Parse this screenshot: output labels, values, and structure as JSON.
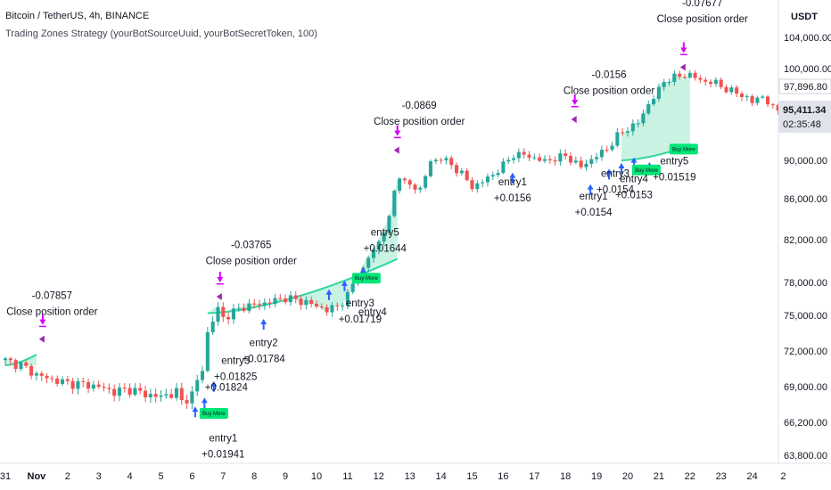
{
  "header": {
    "symbol_line": "Bitcoin / TetherUS, 4h, BINANCE",
    "strategy_line": "Trading Zones Strategy (yourBotSourceUuid, yourBotSecretToken, 100)",
    "currency": "USDT"
  },
  "price_badge": {
    "price": "95,411.34",
    "countdown": "02:35:48",
    "prior_price": "97,896.80"
  },
  "colors": {
    "up": "#26a69a",
    "down": "#ef5350",
    "zone_fill": "#bff0de",
    "zone_line": "#2fd6a0",
    "entry_arrow": "#2962ff",
    "close_arrow": "#d500f9",
    "tag_bg": "#00e676",
    "marker_blue": "#2962ff",
    "marker_purple": "#9c27b0"
  },
  "chart_data": {
    "type": "candlestick",
    "x_ticks": [
      {
        "label": "31",
        "day": 0
      },
      {
        "label": "Nov",
        "day": 1
      },
      {
        "label": "2",
        "day": 2
      },
      {
        "label": "3",
        "day": 3
      },
      {
        "label": "4",
        "day": 4
      },
      {
        "label": "5",
        "day": 5
      },
      {
        "label": "6",
        "day": 6
      },
      {
        "label": "7",
        "day": 7
      },
      {
        "label": "8",
        "day": 8
      },
      {
        "label": "9",
        "day": 9
      },
      {
        "label": "10",
        "day": 10
      },
      {
        "label": "11",
        "day": 11
      },
      {
        "label": "12",
        "day": 12
      },
      {
        "label": "13",
        "day": 13
      },
      {
        "label": "14",
        "day": 14
      },
      {
        "label": "15",
        "day": 15
      },
      {
        "label": "16",
        "day": 16
      },
      {
        "label": "17",
        "day": 17
      },
      {
        "label": "18",
        "day": 18
      },
      {
        "label": "19",
        "day": 19
      },
      {
        "label": "20",
        "day": 20
      },
      {
        "label": "21",
        "day": 21
      },
      {
        "label": "22",
        "day": 22
      },
      {
        "label": "23",
        "day": 23
      },
      {
        "label": "24",
        "day": 24
      },
      {
        "label": "2",
        "day": 25
      }
    ],
    "y_ticks": [
      "104,000.00",
      "100,000.00",
      "97,896.80",
      "90,000.00",
      "86,000.00",
      "82,000.00",
      "78,000.00",
      "75,000.00",
      "72,000.00",
      "69,000.00",
      "66,200.00",
      "63,800.00"
    ],
    "y_tick_values": [
      104000,
      100000,
      97896.8,
      90000,
      86000,
      82000,
      78000,
      75000,
      72000,
      69000,
      66200,
      63800
    ],
    "candles_per_day": 6,
    "anchors": [
      [
        0,
        71200
      ],
      [
        3,
        70800
      ],
      [
        6,
        70000
      ],
      [
        9,
        69600
      ],
      [
        12,
        69300
      ],
      [
        15,
        69200
      ],
      [
        18,
        69000
      ],
      [
        21,
        68600
      ],
      [
        24,
        68800
      ],
      [
        27,
        68400
      ],
      [
        30,
        68200
      ],
      [
        33,
        68600
      ],
      [
        34,
        67800
      ],
      [
        36,
        68400
      ],
      [
        38,
        70500
      ],
      [
        39,
        73500
      ],
      [
        40,
        74600
      ],
      [
        41,
        75600
      ],
      [
        42,
        74800
      ],
      [
        46,
        75800
      ],
      [
        50,
        76100
      ],
      [
        54,
        76600
      ],
      [
        58,
        76200
      ],
      [
        62,
        75500
      ],
      [
        64,
        75800
      ],
      [
        66,
        76800
      ],
      [
        68,
        78800
      ],
      [
        69,
        79200
      ],
      [
        70,
        80300
      ],
      [
        72,
        81800
      ],
      [
        74,
        84000
      ],
      [
        75,
        86800
      ],
      [
        76,
        88500
      ],
      [
        77,
        87600
      ],
      [
        80,
        87000
      ],
      [
        82,
        89800
      ],
      [
        84,
        90300
      ],
      [
        86,
        89500
      ],
      [
        88,
        88600
      ],
      [
        90,
        87200
      ],
      [
        92,
        87800
      ],
      [
        94,
        88500
      ],
      [
        96,
        89500
      ],
      [
        98,
        90600
      ],
      [
        100,
        90600
      ],
      [
        104,
        89900
      ],
      [
        108,
        90500
      ],
      [
        111,
        89300
      ],
      [
        114,
        90500
      ],
      [
        116,
        91200
      ],
      [
        118,
        92600
      ],
      [
        120,
        93400
      ],
      [
        122,
        94000
      ],
      [
        124,
        96000
      ],
      [
        126,
        97500
      ],
      [
        127,
        98500
      ],
      [
        129,
        99000
      ],
      [
        132,
        99300
      ],
      [
        134,
        98600
      ],
      [
        137,
        98300
      ],
      [
        139,
        97600
      ],
      [
        141,
        97200
      ],
      [
        143,
        96700
      ],
      [
        144,
        96200
      ],
      [
        146,
        96900
      ],
      [
        148,
        95500
      ],
      [
        150,
        95400
      ]
    ],
    "zones": [
      {
        "from_day": 0,
        "to_day": 1.0,
        "price_top": 72000,
        "line_start": 70800,
        "line_end": 71700
      },
      {
        "from_day": 6.5,
        "to_day": 12.6,
        "price_top": 88000,
        "line_start": 75200,
        "line_end": 80200
      },
      {
        "from_day": 19.8,
        "to_day": 22.0,
        "price_top": 98500,
        "line_start": 90000,
        "line_end": 91600
      }
    ],
    "entry_arrows": [
      {
        "day": 6.1,
        "price": 66600
      },
      {
        "day": 6.4,
        "price": 67300
      },
      {
        "day": 6.7,
        "price": 68600
      },
      {
        "day": 8.3,
        "price": 73800
      },
      {
        "day": 10.4,
        "price": 76400
      },
      {
        "day": 10.9,
        "price": 77200
      },
      {
        "day": 11.5,
        "price": 78400
      },
      {
        "day": 16.3,
        "price": 87600
      },
      {
        "day": 18.8,
        "price": 86400
      },
      {
        "day": 19.4,
        "price": 88000
      },
      {
        "day": 19.8,
        "price": 88600
      },
      {
        "day": 20.2,
        "price": 89200
      },
      {
        "day": 20.7,
        "price": 88700
      }
    ],
    "close_markers": [
      {
        "day": 1.2,
        "price": 74200
      },
      {
        "day": 6.9,
        "price": 78000
      },
      {
        "day": 12.6,
        "price": 92600
      },
      {
        "day": 18.3,
        "price": 95900
      },
      {
        "day": 21.8,
        "price": 102000
      }
    ],
    "buy_more_tags": [
      {
        "label": "Buy More",
        "day": 6.7,
        "price": 66900
      },
      {
        "label": "Buy More",
        "day": 11.6,
        "price": 78400
      },
      {
        "label": "Buy More",
        "day": 20.6,
        "price": 89000
      },
      {
        "label": "Buy More",
        "day": 21.8,
        "price": 91200
      }
    ],
    "annotations": [
      {
        "lines": [
          "-0.07857",
          "Close position order"
        ],
        "day": 1.5,
        "price": 76500
      },
      {
        "lines": [
          "-0.03765",
          "Close position order"
        ],
        "day": 7.9,
        "price": 81200
      },
      {
        "lines": [
          "-0.0869",
          "Close position order"
        ],
        "day": 13.3,
        "price": 95500
      },
      {
        "lines": [
          "-0.0156",
          "Close position order"
        ],
        "day": 19.4,
        "price": 98900
      },
      {
        "lines": [
          "-0.07677",
          "Close position order"
        ],
        "day": 22.4,
        "price": 108000
      },
      {
        "lines": [
          "entry1",
          "+0.01941"
        ],
        "day": 7.0,
        "price": 64800
      },
      {
        "lines": [
          "entry3",
          "+0.01825"
        ],
        "day": 7.4,
        "price": 70900
      },
      {
        "lines": [
          "+0.01824"
        ],
        "day": 7.1,
        "price": 68700
      },
      {
        "lines": [
          "entry2",
          "+0.01784"
        ],
        "day": 8.3,
        "price": 72400
      },
      {
        "lines": [
          "entry3",
          "+0.01719"
        ],
        "day": 11.4,
        "price": 75800
      },
      {
        "lines": [
          "entry4"
        ],
        "day": 11.8,
        "price": 75000
      },
      {
        "lines": [
          "entry5",
          "+0.01644"
        ],
        "day": 12.2,
        "price": 82400
      },
      {
        "lines": [
          "entry1",
          "+0.0156"
        ],
        "day": 16.3,
        "price": 87400
      },
      {
        "lines": [
          "entry1",
          "+0.0154"
        ],
        "day": 18.9,
        "price": 85900
      },
      {
        "lines": [
          "entry3",
          "+0.0154"
        ],
        "day": 19.6,
        "price": 88300
      },
      {
        "lines": [
          "entry4",
          "+0.0153"
        ],
        "day": 20.2,
        "price": 87700
      },
      {
        "lines": [
          "entry5",
          "+0.01519"
        ],
        "day": 21.5,
        "price": 89600
      }
    ]
  }
}
